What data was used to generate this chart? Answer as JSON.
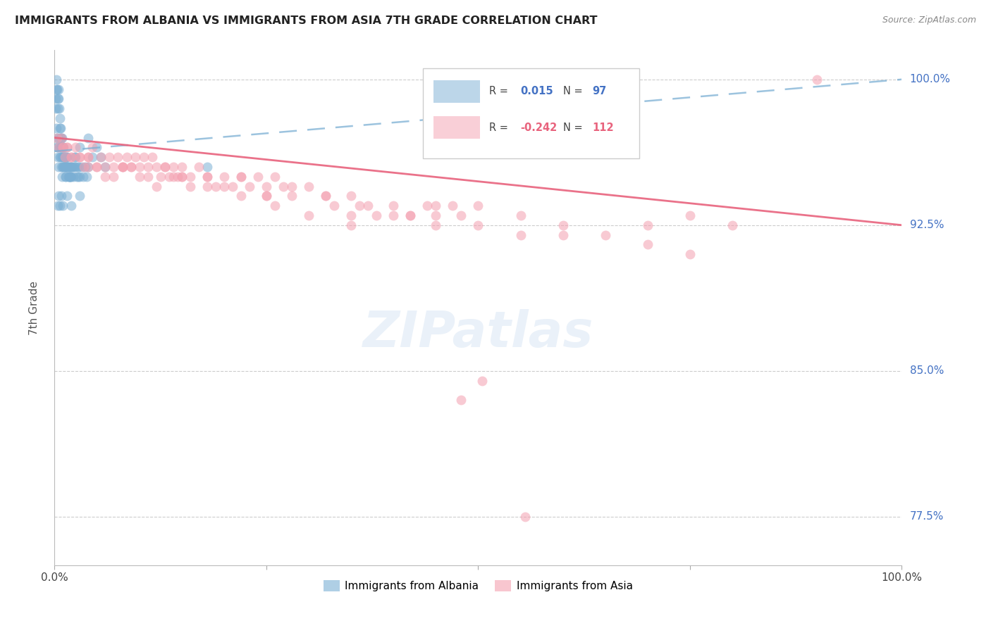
{
  "title": "IMMIGRANTS FROM ALBANIA VS IMMIGRANTS FROM ASIA 7TH GRADE CORRELATION CHART",
  "source": "Source: ZipAtlas.com",
  "ylabel": "7th Grade",
  "albania_R": 0.015,
  "albania_N": 97,
  "asia_R": -0.242,
  "asia_N": 112,
  "albania_color": "#7bafd4",
  "asia_color": "#f4a0b0",
  "albania_line_color": "#7bafd4",
  "asia_line_color": "#e8637d",
  "xlim": [
    0.0,
    100.0
  ],
  "ylim": [
    75.0,
    101.5
  ],
  "ytick_vals": [
    77.5,
    85.0,
    92.5,
    100.0
  ],
  "ytick_labels": [
    "77.5%",
    "85.0%",
    "92.5%",
    "100.0%"
  ],
  "albania_x": [
    0.1,
    0.15,
    0.2,
    0.25,
    0.3,
    0.35,
    0.4,
    0.45,
    0.5,
    0.55,
    0.6,
    0.65,
    0.7,
    0.75,
    0.8,
    0.85,
    0.9,
    0.95,
    1.0,
    1.05,
    1.1,
    1.15,
    1.2,
    1.25,
    1.3,
    1.35,
    1.4,
    1.45,
    1.5,
    1.55,
    1.6,
    1.65,
    1.7,
    1.75,
    1.8,
    1.85,
    1.9,
    1.95,
    2.0,
    2.1,
    2.2,
    2.3,
    2.4,
    2.5,
    2.6,
    2.7,
    2.8,
    2.9,
    3.0,
    3.2,
    3.4,
    3.6,
    3.8,
    4.0,
    4.5,
    5.0,
    5.5,
    6.0,
    0.3,
    0.4,
    0.5,
    0.6,
    0.7,
    0.8,
    0.9,
    1.0,
    1.1,
    1.2,
    1.3,
    1.4,
    0.2,
    0.3,
    0.4,
    0.5,
    0.6,
    0.7,
    0.8,
    0.9,
    1.0,
    1.1,
    1.2,
    1.3,
    1.5,
    1.8,
    2.0,
    2.5,
    3.0,
    4.0,
    0.4,
    0.5,
    0.6,
    0.8,
    1.0,
    1.5,
    2.0,
    3.0,
    18.0
  ],
  "albania_y": [
    98.5,
    99.0,
    99.5,
    100.0,
    99.5,
    99.0,
    98.5,
    99.0,
    99.5,
    98.5,
    98.0,
    97.5,
    97.0,
    97.5,
    97.0,
    96.5,
    97.0,
    96.5,
    96.0,
    96.5,
    96.0,
    95.5,
    96.0,
    95.5,
    96.0,
    95.5,
    96.0,
    95.5,
    96.0,
    95.5,
    95.0,
    95.5,
    95.0,
    95.5,
    95.0,
    95.5,
    95.0,
    95.5,
    95.0,
    95.5,
    95.0,
    95.5,
    96.0,
    95.5,
    95.0,
    95.5,
    95.0,
    95.5,
    95.0,
    95.5,
    95.0,
    95.5,
    95.0,
    95.5,
    96.0,
    96.5,
    96.0,
    95.5,
    96.5,
    96.0,
    95.5,
    96.0,
    96.5,
    95.5,
    95.0,
    95.5,
    96.0,
    95.5,
    95.0,
    95.5,
    97.5,
    97.0,
    96.5,
    97.0,
    96.5,
    96.0,
    96.5,
    96.0,
    95.5,
    96.0,
    95.5,
    95.0,
    95.5,
    95.0,
    95.5,
    96.0,
    96.5,
    97.0,
    93.5,
    94.0,
    93.5,
    94.0,
    93.5,
    94.0,
    93.5,
    94.0,
    95.5
  ],
  "asia_x": [
    0.3,
    0.5,
    0.8,
    1.0,
    1.2,
    1.5,
    2.0,
    2.5,
    3.0,
    3.5,
    4.0,
    4.5,
    5.0,
    5.5,
    6.0,
    6.5,
    7.0,
    7.5,
    8.0,
    8.5,
    9.0,
    9.5,
    10.0,
    10.5,
    11.0,
    11.5,
    12.0,
    12.5,
    13.0,
    13.5,
    14.0,
    14.5,
    15.0,
    16.0,
    17.0,
    18.0,
    19.0,
    20.0,
    21.0,
    22.0,
    23.0,
    24.0,
    25.0,
    26.0,
    27.0,
    28.0,
    30.0,
    32.0,
    33.0,
    35.0,
    37.0,
    38.0,
    40.0,
    42.0,
    44.0,
    45.0,
    47.0,
    48.0,
    50.0,
    55.0,
    60.0,
    65.0,
    70.0,
    75.0,
    80.0,
    90.0,
    2.0,
    4.0,
    6.0,
    8.0,
    10.0,
    12.0,
    14.0,
    16.0,
    18.0,
    20.0,
    22.0,
    25.0,
    28.0,
    32.0,
    36.0,
    40.0,
    45.0,
    1.5,
    3.0,
    5.0,
    7.0,
    9.0,
    11.0,
    13.0,
    15.0,
    18.0,
    22.0,
    26.0,
    30.0,
    35.0,
    42.0,
    50.0,
    60.0,
    70.0,
    75.0,
    55.0,
    45.0,
    35.0,
    25.0,
    15.0,
    8.0,
    4.0,
    1.0,
    48.0,
    50.5,
    55.5
  ],
  "asia_y": [
    97.0,
    96.5,
    97.0,
    96.5,
    96.0,
    96.5,
    96.0,
    96.5,
    96.0,
    95.5,
    96.0,
    96.5,
    95.5,
    96.0,
    95.5,
    96.0,
    95.5,
    96.0,
    95.5,
    96.0,
    95.5,
    96.0,
    95.5,
    96.0,
    95.5,
    96.0,
    95.5,
    95.0,
    95.5,
    95.0,
    95.5,
    95.0,
    95.5,
    95.0,
    95.5,
    95.0,
    94.5,
    95.0,
    94.5,
    95.0,
    94.5,
    95.0,
    94.5,
    95.0,
    94.5,
    94.0,
    94.5,
    94.0,
    93.5,
    94.0,
    93.5,
    93.0,
    93.5,
    93.0,
    93.5,
    93.0,
    93.5,
    93.0,
    93.5,
    93.0,
    92.5,
    92.0,
    92.5,
    93.0,
    92.5,
    100.0,
    96.0,
    95.5,
    95.0,
    95.5,
    95.0,
    94.5,
    95.0,
    94.5,
    95.0,
    94.5,
    95.0,
    94.0,
    94.5,
    94.0,
    93.5,
    93.0,
    93.5,
    96.5,
    96.0,
    95.5,
    95.0,
    95.5,
    95.0,
    95.5,
    95.0,
    94.5,
    94.0,
    93.5,
    93.0,
    92.5,
    93.0,
    92.5,
    92.0,
    91.5,
    91.0,
    92.0,
    92.5,
    93.0,
    94.0,
    95.0,
    95.5,
    96.0,
    96.5,
    83.5,
    84.5,
    77.5
  ]
}
